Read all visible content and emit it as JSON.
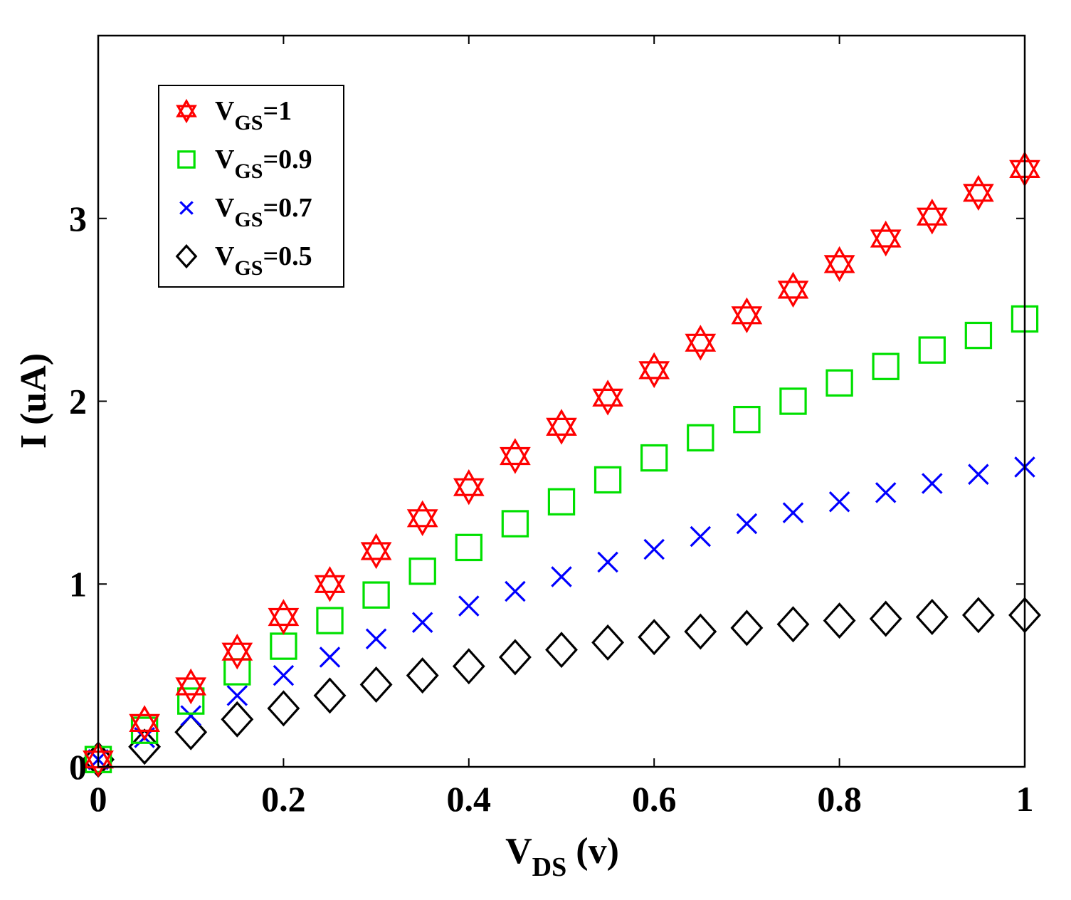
{
  "chart_data": {
    "type": "scatter",
    "title": "",
    "xlabel": {
      "main": "V",
      "sub": "DS",
      "rest": " (v)"
    },
    "ylabel": "I (uA)",
    "xlim": [
      0,
      1
    ],
    "ylim": [
      0,
      4
    ],
    "xticks": [
      0,
      0.2,
      0.4,
      0.6,
      0.8,
      1
    ],
    "xtick_labels": [
      "0",
      "0.2",
      "0.4",
      "0.6",
      "0.8",
      "1"
    ],
    "yticks": [
      0,
      1,
      2,
      3
    ],
    "ytick_labels": [
      "0",
      "1",
      "2",
      "3"
    ],
    "grid": false,
    "legend_position": "top-left",
    "x": [
      0,
      0.05,
      0.1,
      0.15,
      0.2,
      0.25,
      0.3,
      0.35,
      0.4,
      0.45,
      0.5,
      0.55,
      0.6,
      0.65,
      0.7,
      0.75,
      0.8,
      0.85,
      0.9,
      0.95,
      1.0
    ],
    "series": [
      {
        "name": "V_GS=1",
        "legend": {
          "main": "V",
          "sub": "GS",
          "rest": "=1"
        },
        "marker": "hexagram",
        "color": "#ff0000",
        "values": [
          0.04,
          0.24,
          0.44,
          0.63,
          0.82,
          1.0,
          1.18,
          1.36,
          1.53,
          1.7,
          1.86,
          2.02,
          2.17,
          2.32,
          2.47,
          2.61,
          2.75,
          2.89,
          3.01,
          3.14,
          3.27
        ]
      },
      {
        "name": "V_GS=0.9",
        "legend": {
          "main": "V",
          "sub": "GS",
          "rest": "=0.9"
        },
        "marker": "square",
        "color": "#00e000",
        "values": [
          0.04,
          0.2,
          0.36,
          0.52,
          0.66,
          0.8,
          0.94,
          1.07,
          1.2,
          1.33,
          1.45,
          1.57,
          1.69,
          1.8,
          1.9,
          2.0,
          2.1,
          2.19,
          2.28,
          2.36,
          2.45
        ]
      },
      {
        "name": "V_GS=0.7",
        "legend": {
          "main": "V",
          "sub": "GS",
          "rest": "=0.7"
        },
        "marker": "x",
        "color": "#0000ff",
        "values": [
          0.04,
          0.16,
          0.28,
          0.39,
          0.5,
          0.6,
          0.7,
          0.79,
          0.88,
          0.96,
          1.04,
          1.12,
          1.19,
          1.26,
          1.33,
          1.39,
          1.45,
          1.5,
          1.55,
          1.6,
          1.64
        ]
      },
      {
        "name": "V_GS=0.5",
        "legend": {
          "main": "V",
          "sub": "GS",
          "rest": "=0.5"
        },
        "marker": "diamond",
        "color": "#000000",
        "values": [
          0.04,
          0.11,
          0.19,
          0.26,
          0.32,
          0.39,
          0.45,
          0.5,
          0.55,
          0.6,
          0.64,
          0.68,
          0.71,
          0.74,
          0.76,
          0.78,
          0.8,
          0.81,
          0.82,
          0.83,
          0.83
        ]
      }
    ]
  }
}
